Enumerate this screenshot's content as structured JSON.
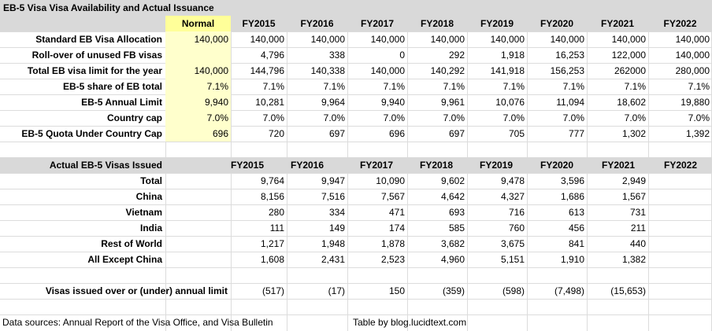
{
  "title": "EB-5 Visa Visa Availability and Actual Issuance",
  "years": [
    "FY2015",
    "FY2016",
    "FY2017",
    "FY2018",
    "FY2019",
    "FY2020",
    "FY2021",
    "FY2022"
  ],
  "allocation": {
    "normal_header": "Normal",
    "rows": [
      {
        "label": "Standard EB Visa Allocation",
        "normal": "140,000",
        "values": [
          "140,000",
          "140,000",
          "140,000",
          "140,000",
          "140,000",
          "140,000",
          "140,000",
          "140,000"
        ]
      },
      {
        "label": "Roll-over of unused FB visas",
        "normal": "",
        "values": [
          "4,796",
          "338",
          "0",
          "292",
          "1,918",
          "16,253",
          "122,000",
          "140,000"
        ]
      },
      {
        "label": "Total EB visa limit for the year",
        "normal": "140,000",
        "values": [
          "144,796",
          "140,338",
          "140,000",
          "140,292",
          "141,918",
          "156,253",
          "262000",
          "280,000"
        ]
      },
      {
        "label": "EB-5 share of EB total",
        "normal": "7.1%",
        "values": [
          "7.1%",
          "7.1%",
          "7.1%",
          "7.1%",
          "7.1%",
          "7.1%",
          "7.1%",
          "7.1%"
        ]
      },
      {
        "label": "EB-5 Annual Limit",
        "normal": "9,940",
        "values": [
          "10,281",
          "9,964",
          "9,940",
          "9,961",
          "10,076",
          "11,094",
          "18,602",
          "19,880"
        ]
      },
      {
        "label": "Country cap",
        "normal": "7.0%",
        "values": [
          "7.0%",
          "7.0%",
          "7.0%",
          "7.0%",
          "7.0%",
          "7.0%",
          "7.0%",
          "7.0%"
        ]
      },
      {
        "label": "EB-5 Quota Under Country Cap",
        "normal": "696",
        "values": [
          "720",
          "697",
          "696",
          "697",
          "705",
          "777",
          "1,302",
          "1,392"
        ]
      }
    ]
  },
  "issued": {
    "header_label": "Actual EB-5 Visas Issued",
    "rows": [
      {
        "label": "Total",
        "values": [
          "9,764",
          "9,947",
          "10,090",
          "9,602",
          "9,478",
          "3,596",
          "2,949",
          ""
        ]
      },
      {
        "label": "China",
        "values": [
          "8,156",
          "7,516",
          "7,567",
          "4,642",
          "4,327",
          "1,686",
          "1,567",
          ""
        ]
      },
      {
        "label": "Vietnam",
        "values": [
          "280",
          "334",
          "471",
          "693",
          "716",
          "613",
          "731",
          ""
        ]
      },
      {
        "label": "India",
        "values": [
          "111",
          "149",
          "174",
          "585",
          "760",
          "456",
          "211",
          ""
        ]
      },
      {
        "label": "Rest of World",
        "values": [
          "1,217",
          "1,948",
          "1,878",
          "3,682",
          "3,675",
          "841",
          "440",
          ""
        ]
      },
      {
        "label": "All Except China",
        "values": [
          "1,608",
          "2,431",
          "2,523",
          "4,960",
          "5,151",
          "1,910",
          "1,382",
          ""
        ]
      }
    ],
    "over_under": {
      "label": "Visas issued over or (under) annual limit",
      "values": [
        "(517)",
        "(17)",
        "150",
        "(359)",
        "(598)",
        "(7,498)",
        "(15,653)",
        ""
      ]
    }
  },
  "footer": {
    "sources": "Data sources: Annual Report of the Visa Office, and Visa Bulletin",
    "credit": "Table by blog.lucidtext.com"
  }
}
